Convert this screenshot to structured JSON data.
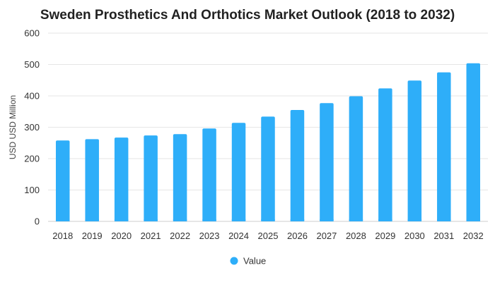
{
  "chart_data": {
    "type": "bar",
    "title": "Sweden Prosthetics And Orthotics Market Outlook (2018 to 2032)",
    "ylabel": "USD USD Million",
    "xlabel": "",
    "categories": [
      "2018",
      "2019",
      "2020",
      "2021",
      "2022",
      "2023",
      "2024",
      "2025",
      "2026",
      "2027",
      "2028",
      "2029",
      "2030",
      "2031",
      "2032"
    ],
    "series": [
      {
        "name": "Value",
        "color": "#2eaef9",
        "values": [
          258,
          262,
          267,
          274,
          278,
          296,
          314,
          334,
          355,
          377,
          399,
          424,
          449,
          475,
          504
        ]
      }
    ],
    "ylim": [
      0,
      600
    ],
    "yticks": [
      0,
      100,
      200,
      300,
      400,
      500,
      600
    ],
    "grid": true,
    "legend_position": "bottom-center"
  }
}
